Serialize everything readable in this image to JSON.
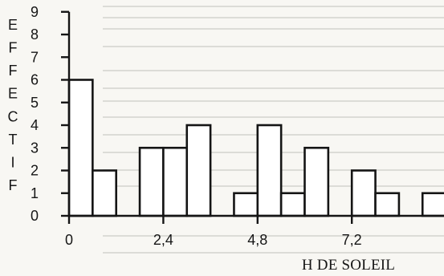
{
  "chart_data": {
    "type": "bar",
    "title": "",
    "xlabel": "H DE SOLEIL",
    "ylabel": "EFFECTIF",
    "bin_width": 0.6,
    "x": [
      0,
      0.6,
      1.2,
      1.8,
      2.4,
      3.0,
      3.6,
      4.2,
      4.8,
      5.4,
      6.0,
      6.6,
      7.2,
      7.8,
      8.4,
      9.0
    ],
    "values": [
      6,
      2,
      0,
      3,
      3,
      4,
      0,
      1,
      4,
      1,
      3,
      0,
      2,
      1,
      0,
      1
    ],
    "xlim": [
      0,
      9.6
    ],
    "ylim": [
      0,
      9
    ],
    "xticks": [
      "0",
      "2,4",
      "4,8",
      "7,2"
    ],
    "yticks": [
      "0",
      "1",
      "2",
      "3",
      "4",
      "5",
      "6",
      "7",
      "8",
      "9"
    ],
    "grid": false,
    "legend": "none"
  },
  "colors": {
    "paper": "#f8f7f3",
    "ink": "#151515",
    "bar_fill": "#ffffff"
  }
}
